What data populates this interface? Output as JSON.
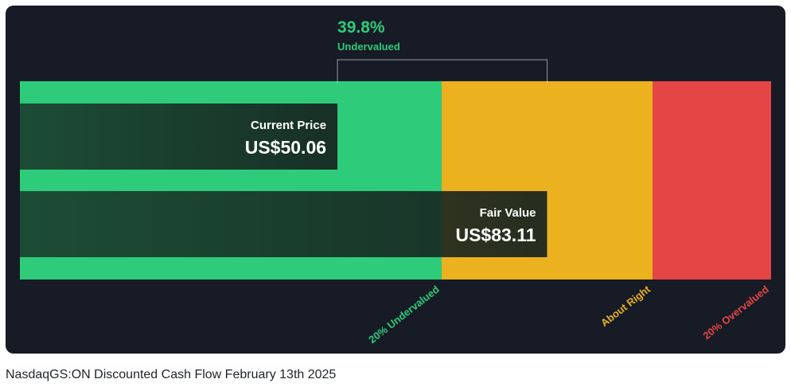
{
  "chart_data": {
    "type": "bar",
    "xlim": [
      0,
      118.42
    ],
    "zones": [
      {
        "label": "20% Undervalued",
        "from": 0,
        "to": 66.49,
        "color": "#2ecc7a"
      },
      {
        "label": "About Right",
        "from": 66.49,
        "to": 99.73,
        "color": "#ebb11f"
      },
      {
        "label": "20% Overvalued",
        "from": 99.73,
        "to": 118.42,
        "color": "#e64545"
      }
    ],
    "bars": [
      {
        "label": "Current Price",
        "value_text": "US$50.06",
        "value": 50.06
      },
      {
        "label": "Fair Value",
        "value_text": "US$83.11",
        "value": 83.11
      }
    ],
    "difference": {
      "pct_text": "39.8%",
      "status_text": "Undervalued",
      "color": "#2ecc7a"
    }
  },
  "caption": "NasdaqGS:ON Discounted Cash Flow February 13th 2025"
}
